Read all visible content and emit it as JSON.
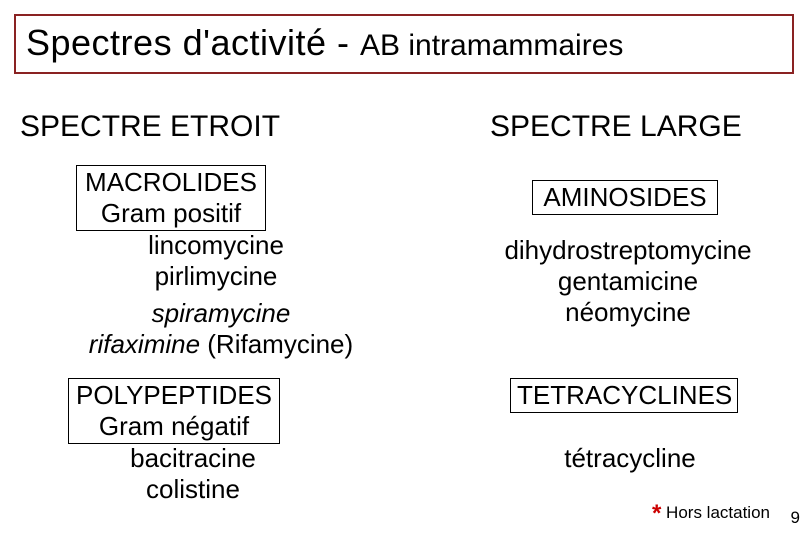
{
  "title": {
    "main": "Spectres d'activité - ",
    "sub": "AB intramammaires"
  },
  "columns": {
    "left_header": "SPECTRE ETROIT",
    "right_header": "SPECTRE LARGE"
  },
  "left": {
    "macrolides": {
      "title_line1": "MACROLIDES",
      "title_line2": "Gram positif",
      "items": [
        "lincomycine",
        "pirlimycine"
      ],
      "italic_items": [
        "spiramycine",
        "rifaximine"
      ],
      "rifaximine_note": " (Rifamycine)"
    },
    "polypeptides": {
      "title_line1": "POLYPEPTIDES",
      "title_line2": "Gram négatif",
      "items": [
        "bacitracine",
        "colistine"
      ]
    }
  },
  "right": {
    "aminosides": {
      "title": "AMINOSIDES",
      "items": [
        "dihydrostreptomycine",
        "gentamicine",
        "néomycine"
      ]
    },
    "tetracyclines": {
      "title": "TETRACYCLINES",
      "items": [
        "tétracycline"
      ]
    }
  },
  "footnote": {
    "star": "*",
    "text": " Hors lactation"
  },
  "page_number": "9",
  "colors": {
    "title_border": "#8a2222",
    "text": "#000000",
    "box_border": "#000000",
    "star": "#cc0000",
    "background": "#ffffff"
  }
}
